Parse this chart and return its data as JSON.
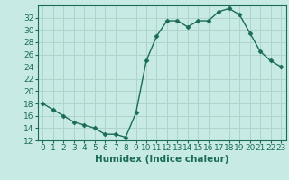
{
  "x": [
    0,
    1,
    2,
    3,
    4,
    5,
    6,
    7,
    8,
    9,
    10,
    11,
    12,
    13,
    14,
    15,
    16,
    17,
    18,
    19,
    20,
    21,
    22,
    23
  ],
  "y": [
    18,
    17,
    16,
    15,
    14.5,
    14,
    13,
    13,
    12.5,
    16.5,
    25,
    29,
    31.5,
    31.5,
    30.5,
    31.5,
    31.5,
    33,
    33.5,
    32.5,
    29.5,
    26.5,
    25,
    24
  ],
  "line_color": "#1a6b5a",
  "marker": "D",
  "marker_size": 2.5,
  "bg_color": "#c8eae4",
  "grid_color": "#afd4cc",
  "xlabel": "Humidex (Indice chaleur)",
  "xlim": [
    -0.5,
    23.5
  ],
  "ylim": [
    12,
    34
  ],
  "yticks": [
    12,
    14,
    16,
    18,
    20,
    22,
    24,
    26,
    28,
    30,
    32
  ],
  "xticks": [
    0,
    1,
    2,
    3,
    4,
    5,
    6,
    7,
    8,
    9,
    10,
    11,
    12,
    13,
    14,
    15,
    16,
    17,
    18,
    19,
    20,
    21,
    22,
    23
  ],
  "xlabel_fontsize": 7.5,
  "tick_fontsize": 6.5,
  "line_width": 1.0
}
